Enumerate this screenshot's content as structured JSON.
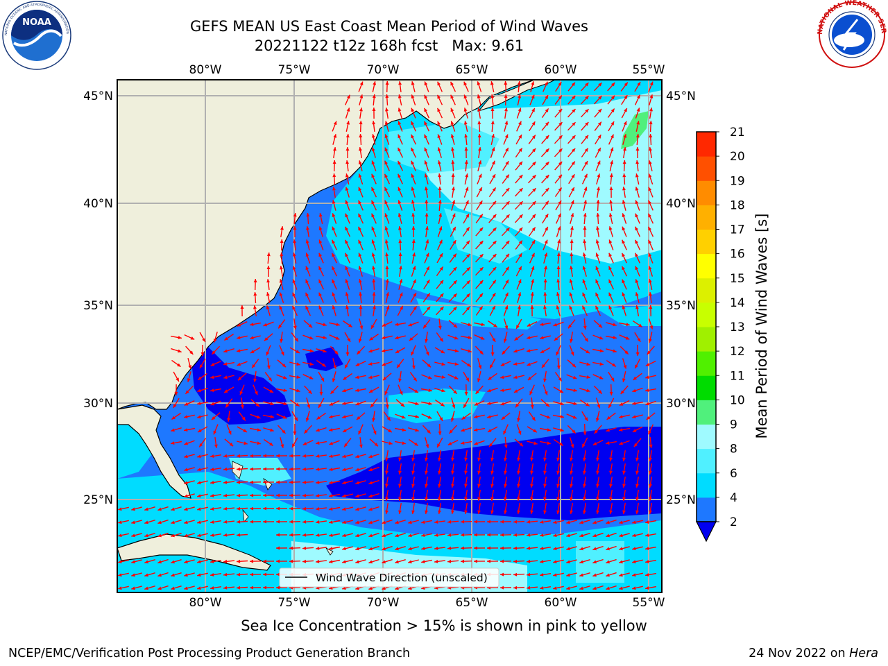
{
  "header": {
    "title_line1": "GEFS MEAN US East Coast Mean Period of Wind Waves",
    "title_line2": "20221122 t12z 168h fcst   Max: 9.61"
  },
  "logos": {
    "left_text": "NOAA",
    "left_ring_text": "NATIONAL OCEANIC AND ATMOSPHERIC ADMINISTRATION · U.S. DEPARTMENT OF COMMERCE",
    "right_ring_text": "NATIONAL WEATHER SERVICE"
  },
  "map": {
    "lon_labels": [
      "80°W",
      "75°W",
      "70°W",
      "65°W",
      "60°W",
      "55°W"
    ],
    "lat_labels": [
      "45°N",
      "40°N",
      "35°N",
      "30°N",
      "25°N"
    ],
    "legend_label": "Wind Wave Direction (unscaled)",
    "vector_color": "#ff0000",
    "land_color": "#efefdc"
  },
  "colorbar": {
    "label": "Mean Period of Wind Waves [s]",
    "ticks": [
      "2",
      "4",
      "6",
      "8",
      "9",
      "10",
      "11",
      "12",
      "13",
      "14",
      "15",
      "16",
      "17",
      "18",
      "19",
      "20",
      "21"
    ],
    "colors": [
      "#1e78ff",
      "#00dcff",
      "#50f0ff",
      "#9ffaff",
      "#50f07c",
      "#00dc00",
      "#50f000",
      "#a0f000",
      "#c8ff00",
      "#dcf000",
      "#ffff00",
      "#ffd000",
      "#ffb000",
      "#ff8c00",
      "#ff5000",
      "#ff2800",
      "#ff0000"
    ],
    "under_color": "#0000f0"
  },
  "footer": {
    "subtitle": "Sea Ice Concentration > 15% is shown in pink to yellow",
    "left": "NCEP/EMC/Verification Post Processing Product Generation Branch",
    "right_date": "24 Nov 2022 on",
    "right_host": "Hera"
  }
}
